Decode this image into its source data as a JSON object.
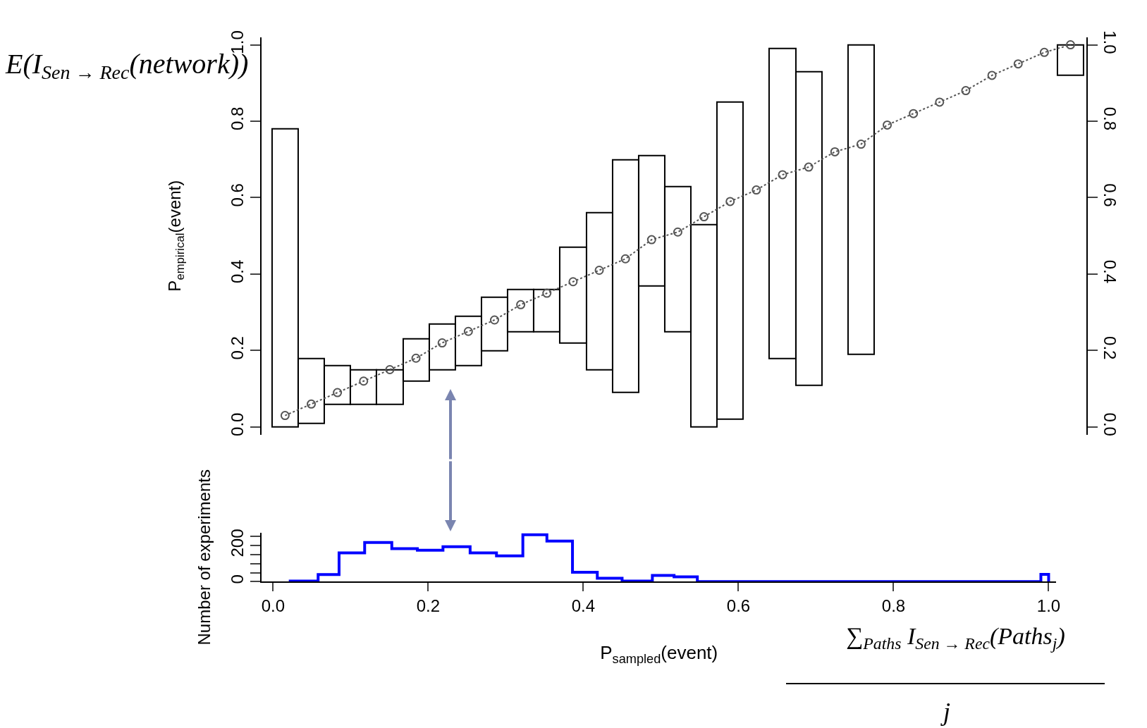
{
  "chart_data": [
    {
      "type": "bar",
      "ylabel": "P$_{empirical}$(event)",
      "categories": [
        null,
        null,
        null,
        null,
        null,
        null,
        null,
        null,
        null,
        null,
        null,
        null,
        null,
        null,
        null,
        null,
        null,
        null,
        null,
        null,
        null,
        null,
        null,
        null,
        null,
        null,
        null,
        null,
        null,
        null,
        null
      ],
      "series": [
        {
          "type": "bar",
          "color": "#000000",
          "base": [
            0,
            0.01,
            0.06,
            0.06,
            0.06,
            0.12,
            0.15,
            0.16,
            0.2,
            0.25,
            0.25,
            0.22,
            0.15,
            0.09,
            0.37,
            0.25,
            0,
            0.02,
            null,
            0.18,
            0.11,
            null,
            0.19,
            null,
            null,
            null,
            null,
            null,
            null,
            null,
            0.92
          ],
          "values": [
            0.78,
            0.17,
            0.1,
            0.09,
            0.09,
            0.11,
            0.12,
            0.13,
            0.14,
            0.11,
            0.11,
            0.25,
            0.41,
            0.61,
            0.34,
            0.38,
            0.53,
            0.83,
            null,
            0.81,
            0.82,
            null,
            0.81,
            null,
            null,
            null,
            null,
            null,
            null,
            null,
            0.08
          ]
        },
        {
          "type": "line",
          "color": "#555555",
          "marker": "circle",
          "line_style": "dotted",
          "values": [
            0.03,
            0.06,
            0.09,
            0.12,
            0.15,
            0.18,
            0.22,
            0.25,
            0.28,
            0.32,
            0.35,
            0.38,
            0.41,
            0.44,
            0.49,
            0.51,
            0.55,
            0.59,
            0.62,
            0.66,
            0.68,
            0.72,
            0.74,
            0.79,
            0.82,
            0.85,
            0.88,
            0.92,
            0.95,
            0.98,
            1.0
          ]
        }
      ],
      "ylim": [
        -0.02,
        1.02
      ],
      "yticks": [
        {
          "value": 0,
          "label": "0.0"
        },
        {
          "value": 0.2,
          "label": "0.2"
        },
        {
          "value": 0.4,
          "label": "0.4"
        },
        {
          "value": 0.6,
          "label": "0.6"
        },
        {
          "value": 0.8,
          "label": "0.8"
        },
        {
          "value": 1,
          "label": "1.0"
        }
      ],
      "y2lim": [
        -0.02,
        1.02
      ],
      "y2ticks": [
        {
          "value": 0,
          "label": "0.0"
        },
        {
          "value": 0.2,
          "label": "0.2"
        },
        {
          "value": 0.4,
          "label": "0.4"
        },
        {
          "value": 0.6,
          "label": "0.6"
        },
        {
          "value": 0.8,
          "label": "0.8"
        },
        {
          "value": 1,
          "label": "1.0"
        }
      ],
      "tick_labels": "y",
      "annotations": [
        "E(I$_{Sen → Rec}$(network))"
      ]
    },
    {
      "type": "histogram",
      "color": "#0000ff",
      "xlabel": "P$_{sampled}$(event)",
      "ylabel": "Number of experiments",
      "bins": [
        0.022,
        0.058,
        0.085,
        0.118,
        0.153,
        0.186,
        0.219,
        0.254,
        0.288,
        0.322,
        0.353,
        0.386,
        0.418,
        0.45,
        0.489,
        0.517,
        0.547,
        0.99,
        1.0
      ],
      "values": [
        3,
        39,
        159,
        217,
        183,
        174,
        194,
        159,
        143,
        260,
        225,
        52,
        19,
        3,
        35,
        27,
        0,
        40
      ],
      "xlim": [
        -0.015,
        1.01
      ],
      "xticks": [
        {
          "value": 0,
          "label": "0.0"
        },
        {
          "value": 0.2,
          "label": "0.2"
        },
        {
          "value": 0.4,
          "label": "0.4"
        },
        {
          "value": 0.6,
          "label": "0.6"
        },
        {
          "value": 0.8,
          "label": "0.8"
        },
        {
          "value": 1,
          "label": "1.0"
        }
      ],
      "ylim": [
        0,
        270
      ],
      "yticks": [
        0,
        {
          "value": 50,
          "label": null
        },
        {
          "value": 100,
          "label": null
        },
        {
          "value": 150,
          "label": null
        },
        200,
        {
          "value": 250,
          "label": null
        }
      ],
      "annotations": [
        "∑$_{Paths}$ I$_{Sen → Rec}$(Paths$_{j}$)",
        "j"
      ]
    }
  ]
}
